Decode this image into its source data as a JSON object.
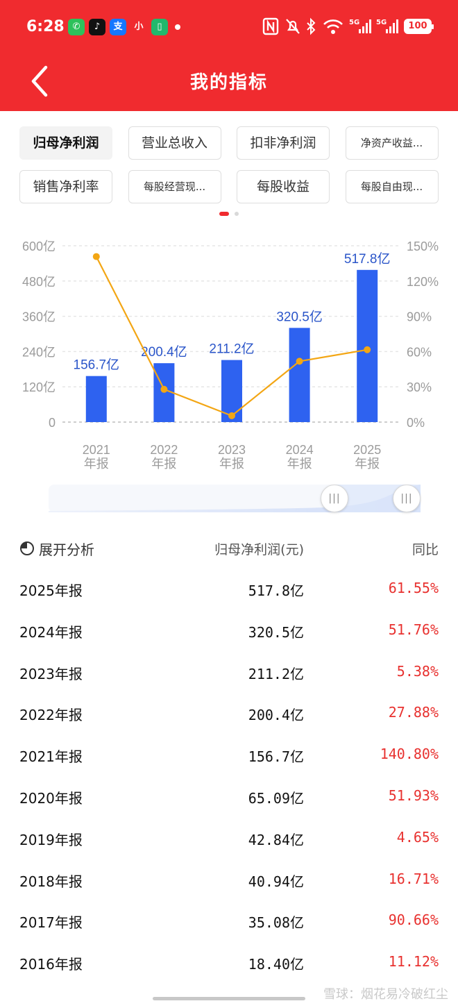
{
  "status_bar": {
    "time": "6:28",
    "battery": "100",
    "apps": [
      {
        "icon": "wechat-icon",
        "glyph": "✆",
        "color": "#2dc15b"
      },
      {
        "icon": "tiktok-icon",
        "glyph": "♪",
        "color": "#111111"
      },
      {
        "icon": "alipay-icon",
        "glyph": "支",
        "color": "#1677ff"
      },
      {
        "icon": "xiaohongshu-icon",
        "glyph": "小",
        "color": "#f02b2f"
      },
      {
        "icon": "battery-app-icon",
        "glyph": "▯",
        "color": "#22b86c"
      }
    ]
  },
  "header": {
    "title": "我的指标",
    "background": "#f02b2f"
  },
  "tabs": [
    {
      "label": "归母净利润",
      "active": true
    },
    {
      "label": "营业总收入"
    },
    {
      "label": "扣非净利润"
    },
    {
      "label": "净资产收益..."
    },
    {
      "label": "销售净利率"
    },
    {
      "label": "每股经营现..."
    },
    {
      "label": "每股收益"
    },
    {
      "label": "每股自由现..."
    }
  ],
  "pager": {
    "count": 2,
    "active": 0
  },
  "chart_data": {
    "type": "bar",
    "categories": [
      "2021年报",
      "2022年报",
      "2023年报",
      "2024年报",
      "2025年报"
    ],
    "x_tick_labels": [
      [
        "2021",
        "年报"
      ],
      [
        "2022",
        "年报"
      ],
      [
        "2023",
        "年报"
      ],
      [
        "2024",
        "年报"
      ],
      [
        "2025",
        "年报"
      ]
    ],
    "series": [
      {
        "kind": "bar",
        "axis": "left",
        "values": [
          156.7,
          200.4,
          211.2,
          320.5,
          517.8
        ],
        "labels": [
          "156.7亿",
          "200.4亿",
          "211.2亿",
          "320.5亿",
          "517.8亿"
        ],
        "color": "#2e62f0"
      },
      {
        "kind": "line",
        "axis": "right",
        "values": [
          140.8,
          27.88,
          5.38,
          51.76,
          61.55
        ],
        "color": "#f3a614"
      }
    ],
    "left_axis": {
      "range": [
        0,
        600
      ],
      "ticks": [
        0,
        120,
        240,
        360,
        480,
        600
      ],
      "tick_labels": [
        "0",
        "120亿",
        "240亿",
        "360亿",
        "480亿",
        "600亿"
      ]
    },
    "right_axis": {
      "range": [
        0,
        150
      ],
      "ticks": [
        0,
        30,
        60,
        90,
        120,
        150
      ],
      "tick_labels": [
        "0%",
        "30%",
        "60%",
        "90%",
        "120%",
        "150%"
      ]
    },
    "grid": true
  },
  "table": {
    "expand_label": "展开分析",
    "value_header": "归母净利润(元)",
    "yoy_header": "同比",
    "rows": [
      {
        "year": "2025年报",
        "value": "517.8亿",
        "yoy": "61.55%"
      },
      {
        "year": "2024年报",
        "value": "320.5亿",
        "yoy": "51.76%"
      },
      {
        "year": "2023年报",
        "value": "211.2亿",
        "yoy": "5.38%"
      },
      {
        "year": "2022年报",
        "value": "200.4亿",
        "yoy": "27.88%"
      },
      {
        "year": "2021年报",
        "value": "156.7亿",
        "yoy": "140.80%"
      },
      {
        "year": "2020年报",
        "value": "65.09亿",
        "yoy": "51.93%"
      },
      {
        "year": "2019年报",
        "value": "42.84亿",
        "yoy": "4.65%"
      },
      {
        "year": "2018年报",
        "value": "40.94亿",
        "yoy": "16.71%"
      },
      {
        "year": "2017年报",
        "value": "35.08亿",
        "yoy": "90.66%"
      },
      {
        "year": "2016年报",
        "value": "18.40亿",
        "yoy": "11.12%"
      }
    ]
  },
  "watermark": "雪球：烟花易冷破红尘"
}
